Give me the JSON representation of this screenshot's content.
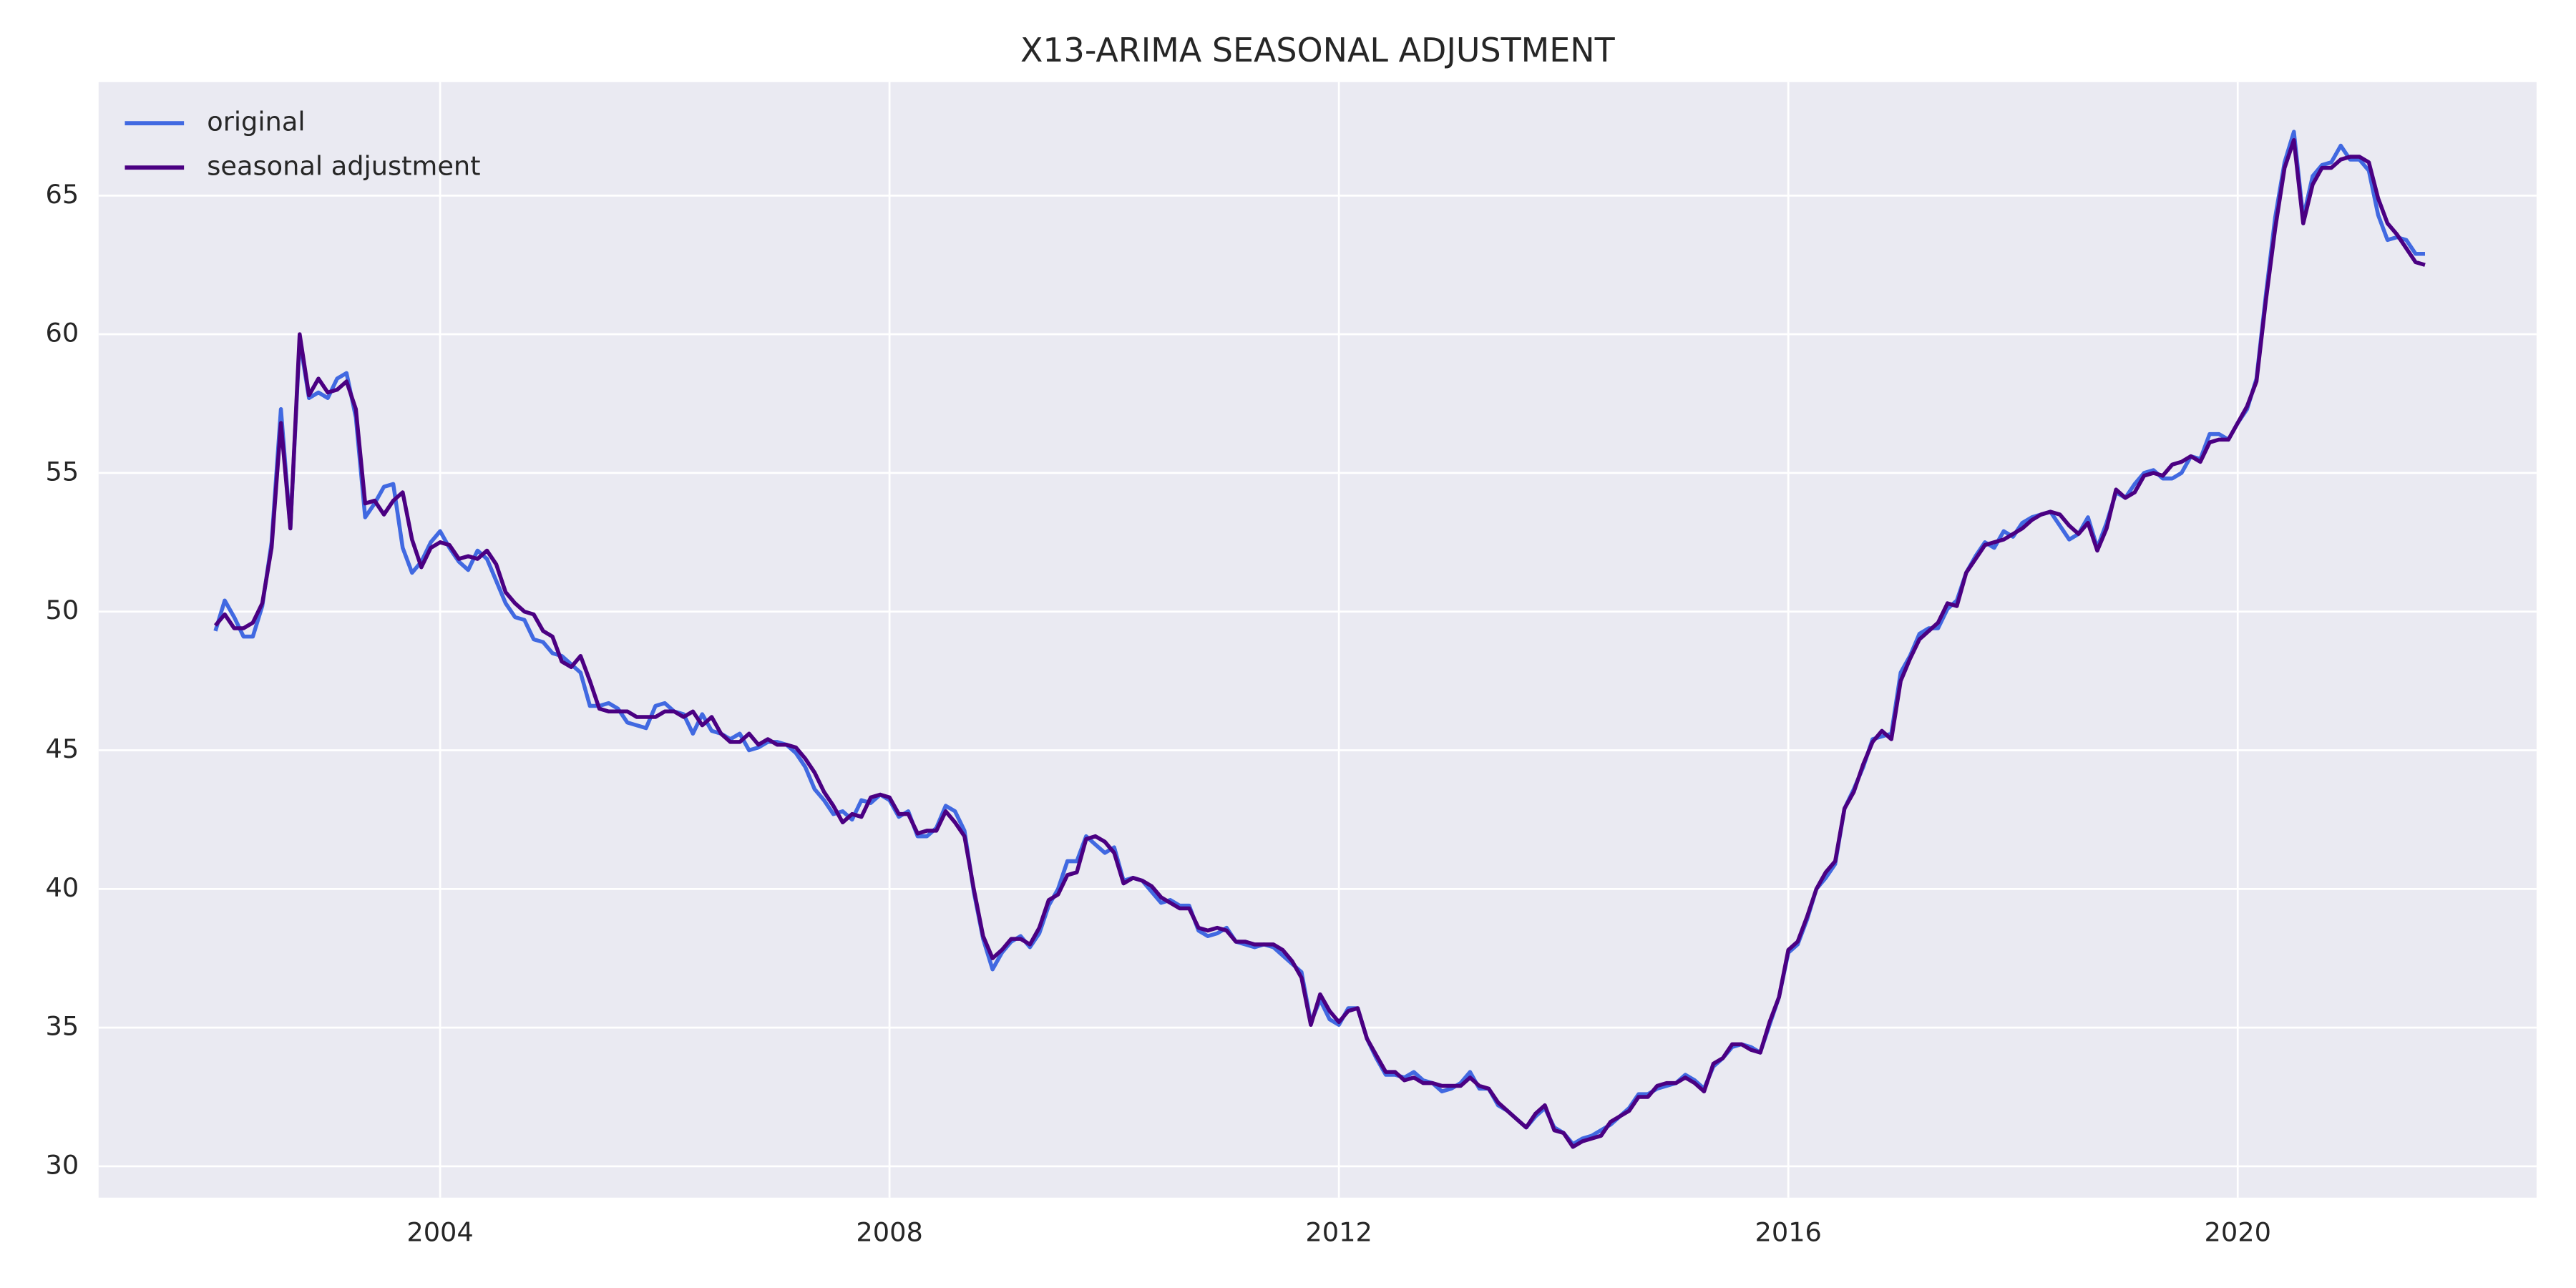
{
  "chart_data": {
    "type": "line",
    "title": "X13-ARIMA SEASONAL ADJUSTMENT",
    "xlim": [
      2000.96,
      2022.66
    ],
    "ylim": [
      28.87,
      69.09
    ],
    "xticks": [
      2004,
      2008,
      2012,
      2016,
      2020
    ],
    "yticks": [
      30,
      35,
      40,
      45,
      50,
      55,
      60,
      65
    ],
    "grid": true,
    "legend": "upper left",
    "x": [
      2002,
      2002.083,
      2002.167,
      2002.25,
      2002.333,
      2002.417,
      2002.5,
      2002.583,
      2002.667,
      2002.75,
      2002.833,
      2002.917,
      2003,
      2003.083,
      2003.167,
      2003.25,
      2003.333,
      2003.417,
      2003.5,
      2003.583,
      2003.667,
      2003.75,
      2003.833,
      2003.917,
      2004,
      2004.083,
      2004.167,
      2004.25,
      2004.333,
      2004.417,
      2004.5,
      2004.583,
      2004.667,
      2004.75,
      2004.833,
      2004.917,
      2005,
      2005.083,
      2005.167,
      2005.25,
      2005.333,
      2005.417,
      2005.5,
      2005.583,
      2005.667,
      2005.75,
      2005.833,
      2005.917,
      2006,
      2006.083,
      2006.167,
      2006.25,
      2006.333,
      2006.417,
      2006.5,
      2006.583,
      2006.667,
      2006.75,
      2006.833,
      2006.917,
      2007,
      2007.083,
      2007.167,
      2007.25,
      2007.333,
      2007.417,
      2007.5,
      2007.583,
      2007.667,
      2007.75,
      2007.833,
      2007.917,
      2008,
      2008.083,
      2008.167,
      2008.25,
      2008.333,
      2008.417,
      2008.5,
      2008.583,
      2008.667,
      2008.75,
      2008.833,
      2008.917,
      2009,
      2009.083,
      2009.167,
      2009.25,
      2009.333,
      2009.417,
      2009.5,
      2009.583,
      2009.667,
      2009.75,
      2009.833,
      2009.917,
      2010,
      2010.083,
      2010.167,
      2010.25,
      2010.333,
      2010.417,
      2010.5,
      2010.583,
      2010.667,
      2010.75,
      2010.833,
      2010.917,
      2011,
      2011.083,
      2011.167,
      2011.25,
      2011.333,
      2011.417,
      2011.5,
      2011.583,
      2011.667,
      2011.75,
      2011.833,
      2011.917,
      2012,
      2012.083,
      2012.167,
      2012.25,
      2012.333,
      2012.417,
      2012.5,
      2012.583,
      2012.667,
      2012.75,
      2012.833,
      2012.917,
      2013,
      2013.083,
      2013.167,
      2013.25,
      2013.333,
      2013.417,
      2013.5,
      2013.583,
      2013.667,
      2013.75,
      2013.833,
      2013.917,
      2014,
      2014.083,
      2014.167,
      2014.25,
      2014.333,
      2014.417,
      2014.5,
      2014.583,
      2014.667,
      2014.75,
      2014.833,
      2014.917,
      2015,
      2015.083,
      2015.167,
      2015.25,
      2015.333,
      2015.417,
      2015.5,
      2015.583,
      2015.667,
      2015.75,
      2015.833,
      2015.917,
      2016,
      2016.083,
      2016.167,
      2016.25,
      2016.333,
      2016.417,
      2016.5,
      2016.583,
      2016.667,
      2016.75,
      2016.833,
      2016.917,
      2017,
      2017.083,
      2017.167,
      2017.25,
      2017.333,
      2017.417,
      2017.5,
      2017.583,
      2017.667,
      2017.75,
      2017.833,
      2017.917,
      2018,
      2018.083,
      2018.167,
      2018.25,
      2018.333,
      2018.417,
      2018.5,
      2018.583,
      2018.667,
      2018.75,
      2018.833,
      2018.917,
      2019,
      2019.083,
      2019.167,
      2019.25,
      2019.333,
      2019.417,
      2019.5,
      2019.583,
      2019.667,
      2019.75,
      2019.833,
      2019.917,
      2020,
      2020.083,
      2020.167,
      2020.25,
      2020.333,
      2020.417,
      2020.5,
      2020.583,
      2020.667,
      2020.75,
      2020.833,
      2020.917,
      2021,
      2021.083,
      2021.167,
      2021.25,
      2021.333,
      2021.417,
      2021.5,
      2021.583,
      2021.667
    ],
    "series": [
      {
        "name": "original",
        "color": "#4169e1",
        "values": [
          49.3,
          50.4,
          49.8,
          49.1,
          49.1,
          50.2,
          52.5,
          57.3,
          53.0,
          59.8,
          57.7,
          57.9,
          57.7,
          58.4,
          58.6,
          57.0,
          53.4,
          53.9,
          54.5,
          54.6,
          52.3,
          51.4,
          51.8,
          52.5,
          52.9,
          52.3,
          51.8,
          51.5,
          52.2,
          51.9,
          51.1,
          50.3,
          49.8,
          49.7,
          49.0,
          48.9,
          48.5,
          48.4,
          48.1,
          47.8,
          46.6,
          46.6,
          46.7,
          46.5,
          46.0,
          45.9,
          45.8,
          46.6,
          46.7,
          46.4,
          46.3,
          45.6,
          46.3,
          45.7,
          45.6,
          45.4,
          45.6,
          45.0,
          45.1,
          45.3,
          45.3,
          45.2,
          44.9,
          44.4,
          43.6,
          43.2,
          42.7,
          42.8,
          42.5,
          43.2,
          43.1,
          43.4,
          43.2,
          42.6,
          42.8,
          41.9,
          41.9,
          42.2,
          43.0,
          42.8,
          42.1,
          39.9,
          38.2,
          37.1,
          37.7,
          38.1,
          38.3,
          37.9,
          38.4,
          39.4,
          40.0,
          41.0,
          41.0,
          41.9,
          41.6,
          41.3,
          41.5,
          40.3,
          40.4,
          40.3,
          39.9,
          39.5,
          39.6,
          39.4,
          39.4,
          38.5,
          38.3,
          38.4,
          38.6,
          38.1,
          38.0,
          37.9,
          38.0,
          37.9,
          37.6,
          37.3,
          37.0,
          35.2,
          36.0,
          35.3,
          35.1,
          35.7,
          35.7,
          34.6,
          33.9,
          33.3,
          33.3,
          33.2,
          33.4,
          33.1,
          33.0,
          32.7,
          32.8,
          33.0,
          33.4,
          32.8,
          32.8,
          32.2,
          32.0,
          31.7,
          31.4,
          31.8,
          32.1,
          31.4,
          31.2,
          30.8,
          31.0,
          31.1,
          31.3,
          31.5,
          31.8,
          32.1,
          32.6,
          32.6,
          32.8,
          32.9,
          33.0,
          33.3,
          33.1,
          32.8,
          33.6,
          33.9,
          34.3,
          34.4,
          34.3,
          34.1,
          35.1,
          36.1,
          37.7,
          38.0,
          38.9,
          40.0,
          40.4,
          40.9,
          42.9,
          43.6,
          44.4,
          45.4,
          45.5,
          45.6,
          47.8,
          48.4,
          49.2,
          49.4,
          49.4,
          50.1,
          50.4,
          51.4,
          52.0,
          52.5,
          52.3,
          52.9,
          52.7,
          53.2,
          53.4,
          53.5,
          53.6,
          53.1,
          52.6,
          52.8,
          53.4,
          52.3,
          53.2,
          54.3,
          54.1,
          54.6,
          55.0,
          55.1,
          54.8,
          54.8,
          55.0,
          55.6,
          55.5,
          56.4,
          56.4,
          56.2,
          56.8,
          57.3,
          58.4,
          61.4,
          64.2,
          66.2,
          67.3,
          64.2,
          65.7,
          66.1,
          66.2,
          66.8,
          66.3,
          66.3,
          65.9,
          64.3,
          63.4,
          63.5,
          63.4,
          62.9,
          62.9
        ]
      },
      {
        "name": "seasonal adjustment",
        "color": "#4b0082",
        "values": [
          49.5,
          49.9,
          49.4,
          49.4,
          49.6,
          50.3,
          52.3,
          56.8,
          53.0,
          60.0,
          57.8,
          58.4,
          57.9,
          58.0,
          58.3,
          57.3,
          53.9,
          54.0,
          53.5,
          54.0,
          54.3,
          52.6,
          51.6,
          52.3,
          52.5,
          52.4,
          51.9,
          52.0,
          51.9,
          52.2,
          51.7,
          50.7,
          50.3,
          50.0,
          49.9,
          49.3,
          49.1,
          48.2,
          48.0,
          48.4,
          47.5,
          46.5,
          46.4,
          46.4,
          46.4,
          46.2,
          46.2,
          46.2,
          46.4,
          46.4,
          46.2,
          46.4,
          45.9,
          46.2,
          45.6,
          45.3,
          45.3,
          45.6,
          45.2,
          45.4,
          45.2,
          45.2,
          45.1,
          44.7,
          44.2,
          43.5,
          43.0,
          42.4,
          42.7,
          42.6,
          43.3,
          43.4,
          43.3,
          42.7,
          42.7,
          42.0,
          42.1,
          42.1,
          42.8,
          42.4,
          41.9,
          40.0,
          38.3,
          37.5,
          37.8,
          38.2,
          38.2,
          38.0,
          38.6,
          39.6,
          39.8,
          40.5,
          40.6,
          41.8,
          41.9,
          41.7,
          41.3,
          40.2,
          40.4,
          40.3,
          40.1,
          39.7,
          39.5,
          39.3,
          39.3,
          38.6,
          38.5,
          38.6,
          38.5,
          38.1,
          38.1,
          38.0,
          38.0,
          38.0,
          37.8,
          37.4,
          36.8,
          35.1,
          36.2,
          35.6,
          35.2,
          35.6,
          35.7,
          34.6,
          34.0,
          33.4,
          33.4,
          33.1,
          33.2,
          33.0,
          33.0,
          32.9,
          32.9,
          32.9,
          33.2,
          32.9,
          32.8,
          32.3,
          32.0,
          31.7,
          31.4,
          31.9,
          32.2,
          31.3,
          31.2,
          30.7,
          30.9,
          31.0,
          31.1,
          31.6,
          31.8,
          32.0,
          32.5,
          32.5,
          32.9,
          33.0,
          33.0,
          33.2,
          33.0,
          32.7,
          33.7,
          33.9,
          34.4,
          34.4,
          34.2,
          34.1,
          35.2,
          36.1,
          37.8,
          38.1,
          39.0,
          40.0,
          40.6,
          41.0,
          42.9,
          43.5,
          44.5,
          45.3,
          45.7,
          45.4,
          47.5,
          48.3,
          49.0,
          49.3,
          49.6,
          50.3,
          50.2,
          51.4,
          51.9,
          52.4,
          52.5,
          52.6,
          52.8,
          53.0,
          53.3,
          53.5,
          53.6,
          53.5,
          53.1,
          52.8,
          53.2,
          52.2,
          53.0,
          54.4,
          54.1,
          54.3,
          54.9,
          55.0,
          54.9,
          55.3,
          55.4,
          55.6,
          55.4,
          56.1,
          56.2,
          56.2,
          56.8,
          57.4,
          58.3,
          61.2,
          63.8,
          66.0,
          67.0,
          64.0,
          65.4,
          66.0,
          66.0,
          66.3,
          66.4,
          66.4,
          66.2,
          64.9,
          64.0,
          63.6,
          63.1,
          62.6,
          62.5
        ]
      }
    ]
  }
}
